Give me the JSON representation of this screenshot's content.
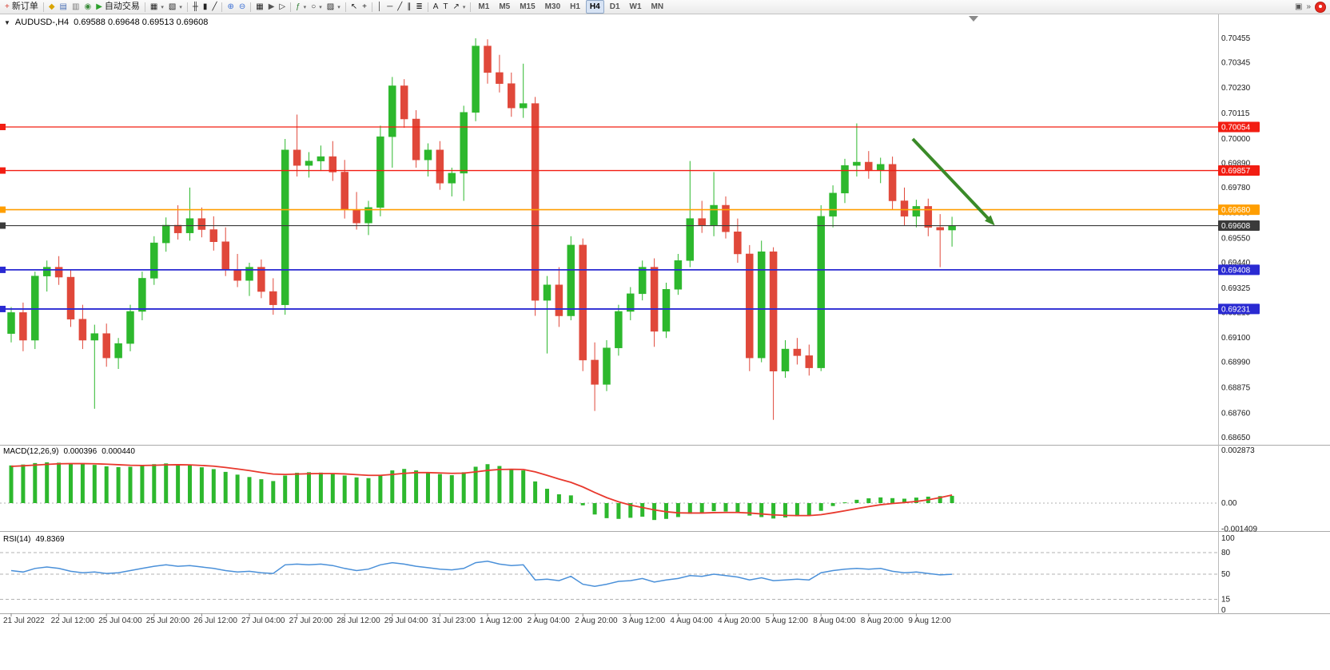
{
  "icons": {
    "chart_menu": "▼"
  },
  "toolbar": {
    "items": [
      {
        "name": "new-order-button",
        "glyph": "+",
        "glyph_color": "#d63a2e",
        "label": "新订单"
      },
      {
        "name": "sep"
      },
      {
        "name": "metaeditor-icon",
        "glyph": "◆",
        "glyph_color": "#d9a400"
      },
      {
        "name": "market-watch-icon",
        "glyph": "▤",
        "glyph_color": "#4a6fb5"
      },
      {
        "name": "data-window-icon",
        "glyph": "▥",
        "glyph_color": "#777777"
      },
      {
        "name": "navigator-icon",
        "glyph": "◉",
        "glyph_color": "#3c8c3c"
      },
      {
        "name": "auto-trading-button",
        "glyph": "▶",
        "glyph_color": "#2ca02c",
        "label": "自动交易"
      },
      {
        "name": "sep"
      },
      {
        "name": "new-chart-icon",
        "glyph": "▦",
        "caret": true
      },
      {
        "name": "profiles-icon",
        "glyph": "▧",
        "caret": true
      },
      {
        "name": "sep"
      },
      {
        "name": "bar-chart-icon",
        "glyph": "╫"
      },
      {
        "name": "candlestick-chart-icon",
        "glyph": "▮"
      },
      {
        "name": "line-chart-icon",
        "glyph": "╱"
      },
      {
        "name": "sep"
      },
      {
        "name": "zoom-in-icon",
        "glyph": "⊕",
        "glyph_color": "#3b6fd4"
      },
      {
        "name": "zoom-out-icon",
        "glyph": "⊖",
        "glyph_color": "#3b6fd4"
      },
      {
        "name": "sep"
      },
      {
        "name": "tile-windows-icon",
        "glyph": "▦"
      },
      {
        "name": "auto-scroll-icon",
        "glyph": "▶",
        "glyph_color": "#555555"
      },
      {
        "name": "chart-shift-icon",
        "glyph": "▷"
      },
      {
        "name": "sep"
      },
      {
        "name": "indicators-icon",
        "glyph": "ƒ",
        "glyph_color": "#2e7d32",
        "caret": true
      },
      {
        "name": "periods-icon",
        "glyph": "○",
        "caret": true
      },
      {
        "name": "templates-icon",
        "glyph": "▨",
        "caret": true
      },
      {
        "name": "sep"
      },
      {
        "name": "cursor-icon",
        "glyph": "↖"
      },
      {
        "name": "crosshair-icon",
        "glyph": "+"
      },
      {
        "name": "sep"
      },
      {
        "name": "vertical-line-icon",
        "glyph": "│"
      },
      {
        "name": "horizontal-line-icon",
        "glyph": "─"
      },
      {
        "name": "trendline-icon",
        "glyph": "╱"
      },
      {
        "name": "channel-icon",
        "glyph": "∥"
      },
      {
        "name": "fibonacci-icon",
        "glyph": "≣"
      },
      {
        "name": "sep"
      },
      {
        "name": "text-icon",
        "glyph": "A"
      },
      {
        "name": "text-label-icon",
        "glyph": "T"
      },
      {
        "name": "arrows-icon",
        "glyph": "↗",
        "caret": true
      },
      {
        "name": "sep"
      }
    ],
    "timeframes": [
      {
        "label": "M1"
      },
      {
        "label": "M5"
      },
      {
        "label": "M15"
      },
      {
        "label": "M30"
      },
      {
        "label": "H1"
      },
      {
        "label": "H4",
        "active": true
      },
      {
        "label": "D1"
      },
      {
        "label": "W1"
      },
      {
        "label": "MN"
      }
    ],
    "right_icons": [
      {
        "name": "window-list-icon",
        "glyph": "▣"
      },
      {
        "name": "more-commands-icon",
        "glyph": "»"
      }
    ]
  },
  "chart": {
    "symbol_title": "AUDUSD-,H4",
    "ohlc_text": "0.69588 0.69648 0.69513 0.69608",
    "lines": [
      {
        "value": 0.70054,
        "label": "0.70054",
        "color": "#f21d12",
        "width": 1.3,
        "kind": "resistance"
      },
      {
        "value": 0.69857,
        "label": "0.69857",
        "color": "#f21d12",
        "width": 1.3,
        "kind": "resistance"
      },
      {
        "value": 0.6968,
        "label": "0.69680",
        "color": "#ff9e00",
        "width": 1.6,
        "kind": "pivot"
      },
      {
        "value": 0.69608,
        "label": "0.69608",
        "color": "#3a3a3a",
        "width": 1.1,
        "kind": "current-price"
      },
      {
        "value": 0.69408,
        "label": "0.69408",
        "color": "#2a2ad2",
        "width": 1.8,
        "kind": "support"
      },
      {
        "value": 0.69231,
        "label": "0.69231",
        "color": "#2a2ad2",
        "width": 1.8,
        "kind": "support"
      }
    ],
    "arrow": {
      "color": "#3a8a28",
      "from": {
        "i": 75.7,
        "price": 0.7
      },
      "to": {
        "i": 82.6,
        "price": 0.69608
      }
    }
  },
  "indicators": {
    "macd": {
      "label": "MACD(12,26,9)",
      "main_value": "0.000396",
      "signal_value": "0.000440"
    },
    "rsi": {
      "label": "RSI(14)",
      "value": "49.8369"
    }
  },
  "chart_data": [
    {
      "type": "candlestick",
      "name": "AUDUSD H4",
      "ylim": [
        0.68617,
        0.70563
      ],
      "up_color": "#2db82d",
      "down_color": "#e0483a",
      "price_ticks": [
        0.70455,
        0.70345,
        0.7023,
        0.70115,
        0.7,
        0.6989,
        0.6978,
        0.69665,
        0.6955,
        0.6944,
        0.69325,
        0.69215,
        0.691,
        0.6899,
        0.68875,
        0.6876,
        0.6865
      ],
      "time_labels": [
        {
          "i": 0,
          "t": "21 Jul 2022"
        },
        {
          "i": 4,
          "t": "22 Jul 12:00"
        },
        {
          "i": 8,
          "t": "25 Jul 04:00"
        },
        {
          "i": 12,
          "t": "25 Jul 20:00"
        },
        {
          "i": 16,
          "t": "26 Jul 12:00"
        },
        {
          "i": 20,
          "t": "27 Jul 04:00"
        },
        {
          "i": 24,
          "t": "27 Jul 20:00"
        },
        {
          "i": 28,
          "t": "28 Jul 12:00"
        },
        {
          "i": 32,
          "t": "29 Jul 04:00"
        },
        {
          "i": 36,
          "t": "31 Jul 23:00"
        },
        {
          "i": 40,
          "t": "1 Aug 12:00"
        },
        {
          "i": 44,
          "t": "2 Aug 04:00"
        },
        {
          "i": 48,
          "t": "2 Aug 20:00"
        },
        {
          "i": 52,
          "t": "3 Aug 12:00"
        },
        {
          "i": 56,
          "t": "4 Aug 04:00"
        },
        {
          "i": 60,
          "t": "4 Aug 20:00"
        },
        {
          "i": 64,
          "t": "5 Aug 12:00"
        },
        {
          "i": 68,
          "t": "8 Aug 04:00"
        },
        {
          "i": 72,
          "t": "8 Aug 20:00"
        },
        {
          "i": 76,
          "t": "9 Aug 12:00"
        }
      ],
      "candles": [
        [
          0.6912,
          0.6924,
          0.6908,
          0.69215
        ],
        [
          0.69215,
          0.6926,
          0.6904,
          0.6909
        ],
        [
          0.6909,
          0.694,
          0.6905,
          0.6938
        ],
        [
          0.6938,
          0.6945,
          0.6931,
          0.6942
        ],
        [
          0.6942,
          0.6947,
          0.6934,
          0.69375
        ],
        [
          0.69375,
          0.6941,
          0.6915,
          0.69185
        ],
        [
          0.69185,
          0.6925,
          0.6905,
          0.6909
        ],
        [
          0.6909,
          0.6916,
          0.6878,
          0.6912
        ],
        [
          0.6912,
          0.69165,
          0.6897,
          0.6901
        ],
        [
          0.6901,
          0.691,
          0.6896,
          0.69075
        ],
        [
          0.69075,
          0.6925,
          0.6904,
          0.6922
        ],
        [
          0.6922,
          0.694,
          0.6918,
          0.6937
        ],
        [
          0.6937,
          0.6956,
          0.6934,
          0.6953
        ],
        [
          0.6953,
          0.69645,
          0.6949,
          0.6961
        ],
        [
          0.6961,
          0.697,
          0.69545,
          0.69575
        ],
        [
          0.69575,
          0.6978,
          0.6954,
          0.6964
        ],
        [
          0.6964,
          0.6969,
          0.69555,
          0.6959
        ],
        [
          0.6959,
          0.6965,
          0.69495,
          0.69535
        ],
        [
          0.69535,
          0.696,
          0.6938,
          0.6941
        ],
        [
          0.6941,
          0.6948,
          0.6933,
          0.6936
        ],
        [
          0.6936,
          0.6944,
          0.6929,
          0.6942
        ],
        [
          0.6942,
          0.69455,
          0.6928,
          0.6931
        ],
        [
          0.6931,
          0.6937,
          0.69205,
          0.6925
        ],
        [
          0.6925,
          0.7,
          0.69205,
          0.6995
        ],
        [
          0.6995,
          0.7011,
          0.6983,
          0.6988
        ],
        [
          0.6988,
          0.6994,
          0.69825,
          0.699
        ],
        [
          0.699,
          0.6997,
          0.69855,
          0.6992
        ],
        [
          0.6992,
          0.6999,
          0.6981,
          0.6985
        ],
        [
          0.6985,
          0.69905,
          0.6964,
          0.6968
        ],
        [
          0.6968,
          0.6976,
          0.6959,
          0.6962
        ],
        [
          0.6962,
          0.6972,
          0.69565,
          0.6969
        ],
        [
          0.6969,
          0.7006,
          0.6965,
          0.7001
        ],
        [
          0.7001,
          0.7028,
          0.6987,
          0.7024
        ],
        [
          0.7024,
          0.7027,
          0.7005,
          0.7009
        ],
        [
          0.7009,
          0.7013,
          0.6987,
          0.69905
        ],
        [
          0.69905,
          0.6998,
          0.6983,
          0.6995
        ],
        [
          0.6995,
          0.6999,
          0.6977,
          0.698
        ],
        [
          0.698,
          0.6987,
          0.6974,
          0.69845
        ],
        [
          0.69845,
          0.7015,
          0.6972,
          0.7012
        ],
        [
          0.7012,
          0.70455,
          0.7008,
          0.7042
        ],
        [
          0.7042,
          0.7045,
          0.7025,
          0.703
        ],
        [
          0.703,
          0.7038,
          0.7021,
          0.7025
        ],
        [
          0.7025,
          0.703,
          0.701,
          0.7014
        ],
        [
          0.7014,
          0.7034,
          0.70095,
          0.7016
        ],
        [
          0.7016,
          0.7019,
          0.692,
          0.6927
        ],
        [
          0.6927,
          0.6938,
          0.6903,
          0.6934
        ],
        [
          0.6934,
          0.6942,
          0.6915,
          0.692
        ],
        [
          0.692,
          0.6956,
          0.6918,
          0.6952
        ],
        [
          0.6952,
          0.6955,
          0.6895,
          0.69
        ],
        [
          0.69,
          0.6908,
          0.6877,
          0.6889
        ],
        [
          0.6889,
          0.6909,
          0.6886,
          0.69055
        ],
        [
          0.69055,
          0.6925,
          0.6902,
          0.6922
        ],
        [
          0.6922,
          0.6933,
          0.6918,
          0.693
        ],
        [
          0.693,
          0.6945,
          0.6927,
          0.6942
        ],
        [
          0.6942,
          0.6946,
          0.6906,
          0.6913
        ],
        [
          0.6913,
          0.6935,
          0.691,
          0.6932
        ],
        [
          0.6932,
          0.6948,
          0.69295,
          0.6945
        ],
        [
          0.6945,
          0.699,
          0.6942,
          0.6964
        ],
        [
          0.6964,
          0.6972,
          0.69575,
          0.6961
        ],
        [
          0.6961,
          0.6985,
          0.6956,
          0.697
        ],
        [
          0.697,
          0.6974,
          0.6955,
          0.6958
        ],
        [
          0.6958,
          0.6964,
          0.6944,
          0.6948
        ],
        [
          0.6948,
          0.6952,
          0.6895,
          0.6901
        ],
        [
          0.6901,
          0.6954,
          0.6899,
          0.6949
        ],
        [
          0.6949,
          0.6951,
          0.6873,
          0.6895
        ],
        [
          0.6895,
          0.6909,
          0.6892,
          0.6905
        ],
        [
          0.6905,
          0.691,
          0.6898,
          0.6902
        ],
        [
          0.6902,
          0.6907,
          0.6893,
          0.68965
        ],
        [
          0.68965,
          0.697,
          0.6895,
          0.6965
        ],
        [
          0.6965,
          0.6979,
          0.696,
          0.69755
        ],
        [
          0.69755,
          0.6991,
          0.6971,
          0.6988
        ],
        [
          0.6988,
          0.7007,
          0.6983,
          0.69895
        ],
        [
          0.69895,
          0.69945,
          0.6982,
          0.6986
        ],
        [
          0.6986,
          0.69915,
          0.698,
          0.69885
        ],
        [
          0.69885,
          0.6992,
          0.6968,
          0.6972
        ],
        [
          0.6972,
          0.6978,
          0.6961,
          0.6965
        ],
        [
          0.6965,
          0.69725,
          0.696,
          0.69695
        ],
        [
          0.69695,
          0.6973,
          0.6956,
          0.696
        ],
        [
          0.696,
          0.6966,
          0.6942,
          0.69588
        ],
        [
          0.69588,
          0.69648,
          0.69513,
          0.69608
        ]
      ]
    },
    {
      "type": "bar",
      "name": "MACD(12,26,9)",
      "ylim": [
        -0.00152,
        0.00313
      ],
      "bar_color": "#2db82d",
      "signal_color": "#e8392e",
      "current_main": 0.000396,
      "current_signal": 0.00044,
      "axis_labels": [
        {
          "v": 0.002873,
          "t": "0.002873"
        },
        {
          "v": 0,
          "t": "0.00"
        },
        {
          "v": -0.001409,
          "t": "-0.001409"
        }
      ],
      "values": [
        0.00205,
        0.0021,
        0.00218,
        0.00222,
        0.0022,
        0.00215,
        0.00212,
        0.00208,
        0.002,
        0.00196,
        0.00198,
        0.00204,
        0.00212,
        0.00216,
        0.0021,
        0.00205,
        0.00195,
        0.00185,
        0.0017,
        0.00155,
        0.00142,
        0.0013,
        0.0012,
        0.0015,
        0.00165,
        0.00168,
        0.00166,
        0.0016,
        0.0015,
        0.0014,
        0.00136,
        0.00152,
        0.00178,
        0.00186,
        0.00178,
        0.00168,
        0.00158,
        0.00152,
        0.00168,
        0.00198,
        0.00212,
        0.00202,
        0.00186,
        0.00178,
        0.00118,
        0.00078,
        0.00048,
        0.00042,
        -0.00012,
        -0.00062,
        -0.00082,
        -0.00086,
        -0.0008,
        -0.00074,
        -0.00092,
        -0.00086,
        -0.00076,
        -0.00058,
        -0.00054,
        -0.00044,
        -0.00046,
        -0.00052,
        -0.00068,
        -0.00076,
        -0.00084,
        -0.00078,
        -0.00072,
        -0.0007,
        -0.00042,
        -0.00016,
        4e-05,
        0.00018,
        0.00026,
        0.00031,
        0.00027,
        0.00024,
        0.0003,
        0.00035,
        0.00038,
        0.000396
      ],
      "signal": [
        0.002,
        0.00203,
        0.00207,
        0.00211,
        0.00214,
        0.00215,
        0.00215,
        0.00214,
        0.00212,
        0.00209,
        0.00206,
        0.00205,
        0.00206,
        0.00208,
        0.00209,
        0.00208,
        0.00205,
        0.00201,
        0.00194,
        0.00186,
        0.00177,
        0.00167,
        0.00158,
        0.00156,
        0.00158,
        0.0016,
        0.00161,
        0.00161,
        0.00159,
        0.00155,
        0.00151,
        0.00151,
        0.00156,
        0.00162,
        0.00166,
        0.00166,
        0.00164,
        0.00162,
        0.00163,
        0.0017,
        0.00178,
        0.00183,
        0.00184,
        0.00183,
        0.0017,
        0.00151,
        0.00131,
        0.00113,
        0.00088,
        0.00058,
        0.0003,
        7e-05,
        -0.00011,
        -0.00024,
        -0.00037,
        -0.00047,
        -0.00053,
        -0.00054,
        -0.00054,
        -0.00052,
        -0.00051,
        -0.00051,
        -0.00054,
        -0.00059,
        -0.00064,
        -0.00067,
        -0.00068,
        -0.00068,
        -0.00063,
        -0.00053,
        -0.00042,
        -0.0003,
        -0.00019,
        -9e-05,
        -2e-05,
        3e-05,
        9e-05,
        0.00018,
        0.0003,
        0.00044
      ]
    },
    {
      "type": "line",
      "name": "RSI(14)",
      "ylim": [
        0,
        100
      ],
      "line_color": "#4a90d9",
      "levels": [
        80,
        50,
        15
      ],
      "current": 49.8369,
      "axis_labels": [
        {
          "v": 100,
          "t": "100"
        },
        {
          "v": 80,
          "t": "80"
        },
        {
          "v": 50,
          "t": "50"
        },
        {
          "v": 15,
          "t": "15"
        },
        {
          "v": 0,
          "t": "0"
        }
      ],
      "values": [
        55,
        53,
        58,
        60,
        58,
        54,
        52,
        53,
        51,
        52,
        55,
        58,
        61,
        63,
        61,
        62,
        60,
        58,
        55,
        53,
        54,
        52,
        51,
        63,
        64,
        63,
        64,
        62,
        58,
        55,
        57,
        63,
        66,
        64,
        61,
        59,
        57,
        56,
        58,
        66,
        68,
        64,
        62,
        63,
        42,
        43,
        41,
        47,
        36,
        33,
        36,
        40,
        41,
        44,
        39,
        42,
        44,
        48,
        47,
        50,
        48,
        46,
        42,
        45,
        41,
        42,
        43,
        42,
        52,
        55,
        57,
        58,
        57,
        58,
        54,
        52,
        53,
        51,
        49,
        49.8
      ]
    }
  ]
}
